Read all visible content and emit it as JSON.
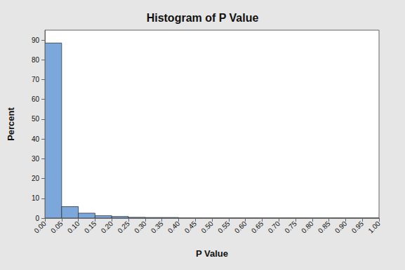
{
  "chart_data": {
    "type": "histogram",
    "title": "Histogram of P Value",
    "x_label": "P Value",
    "y_label": "Percent",
    "bins": [
      0,
      0.05,
      0.1,
      0.15,
      0.2,
      0.25,
      0.3,
      0.35,
      0.4,
      0.45,
      0.5,
      0.55,
      0.6,
      0.65,
      0.7,
      0.75,
      0.8,
      0.85,
      0.9,
      0.95,
      1
    ],
    "values": [
      88.5,
      5.8,
      2.5,
      1.2,
      0.8,
      0.4,
      0.3,
      0.3,
      0,
      0,
      0,
      0,
      0,
      0,
      0,
      0,
      0,
      0,
      0,
      0
    ],
    "color": "#7ba7db",
    "xlim": [
      0,
      1
    ],
    "xticks": [
      {
        "value": 0,
        "label": "0.00"
      },
      {
        "value": 0.05,
        "label": "0.05"
      },
      {
        "value": 0.1,
        "label": "0.10"
      },
      {
        "value": 0.15,
        "label": "0.15"
      },
      {
        "value": 0.2,
        "label": "0.20"
      },
      {
        "value": 0.25,
        "label": "0.25"
      },
      {
        "value": 0.3,
        "label": "0.30"
      },
      {
        "value": 0.35,
        "label": "0.35"
      },
      {
        "value": 0.4,
        "label": "0.40"
      },
      {
        "value": 0.45,
        "label": "0.45"
      },
      {
        "value": 0.5,
        "label": "0.50"
      },
      {
        "value": 0.55,
        "label": "0.55"
      },
      {
        "value": 0.6,
        "label": "0.60"
      },
      {
        "value": 0.65,
        "label": "0.65"
      },
      {
        "value": 0.7,
        "label": "0.70"
      },
      {
        "value": 0.75,
        "label": "0.75"
      },
      {
        "value": 0.8,
        "label": "0.80"
      },
      {
        "value": 0.85,
        "label": "0.85"
      },
      {
        "value": 0.9,
        "label": "0.90"
      },
      {
        "value": 0.95,
        "label": "0.95"
      },
      {
        "value": 1,
        "label": "1.00"
      }
    ],
    "ylim": [
      0,
      95
    ],
    "yticks": [
      0,
      10,
      20,
      30,
      40,
      50,
      60,
      70,
      80,
      90
    ],
    "grid": false
  }
}
